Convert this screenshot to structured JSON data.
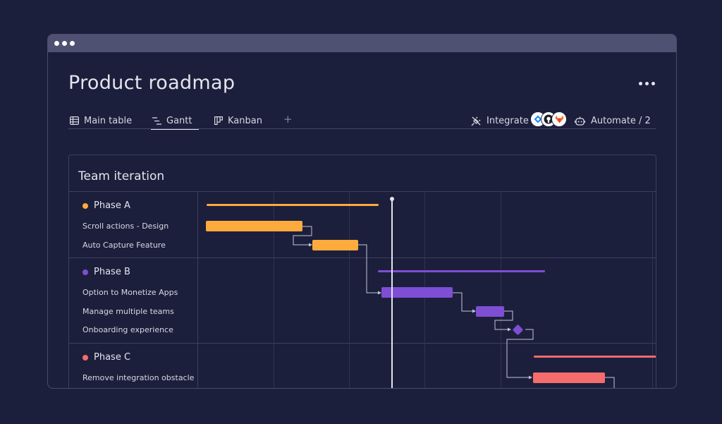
{
  "page": {
    "title": "Product roadmap"
  },
  "tabs": [
    {
      "label": "Main table",
      "icon": "table-icon"
    },
    {
      "label": "Gantt",
      "icon": "gantt-icon"
    },
    {
      "label": "Kanban",
      "icon": "kanban-icon"
    }
  ],
  "tab_add": "+",
  "integrate": {
    "label": "Integrate",
    "apps": [
      "jira-icon",
      "github-icon",
      "gitlab-icon"
    ]
  },
  "automate": {
    "label": "Automate / 2"
  },
  "panel": {
    "title": "Team iteration"
  },
  "phases": [
    {
      "name": "Phase A",
      "color": "#fdab3d",
      "tasks": [
        "Scroll actions - Design",
        "Auto Capture Feature"
      ]
    },
    {
      "name": "Phase B",
      "color": "#7e4ed4",
      "tasks": [
        "Option to Monetize Apps",
        "Manage multiple teams",
        "Onboarding experience"
      ]
    },
    {
      "name": "Phase C",
      "color": "#f56c6c",
      "tasks": [
        "Remove integration obstacle"
      ]
    }
  ],
  "colors": {
    "background": "#1c1f3b",
    "phase_a": "#fdab3d",
    "phase_b": "#7e4ed4",
    "phase_c": "#f56c6c"
  }
}
